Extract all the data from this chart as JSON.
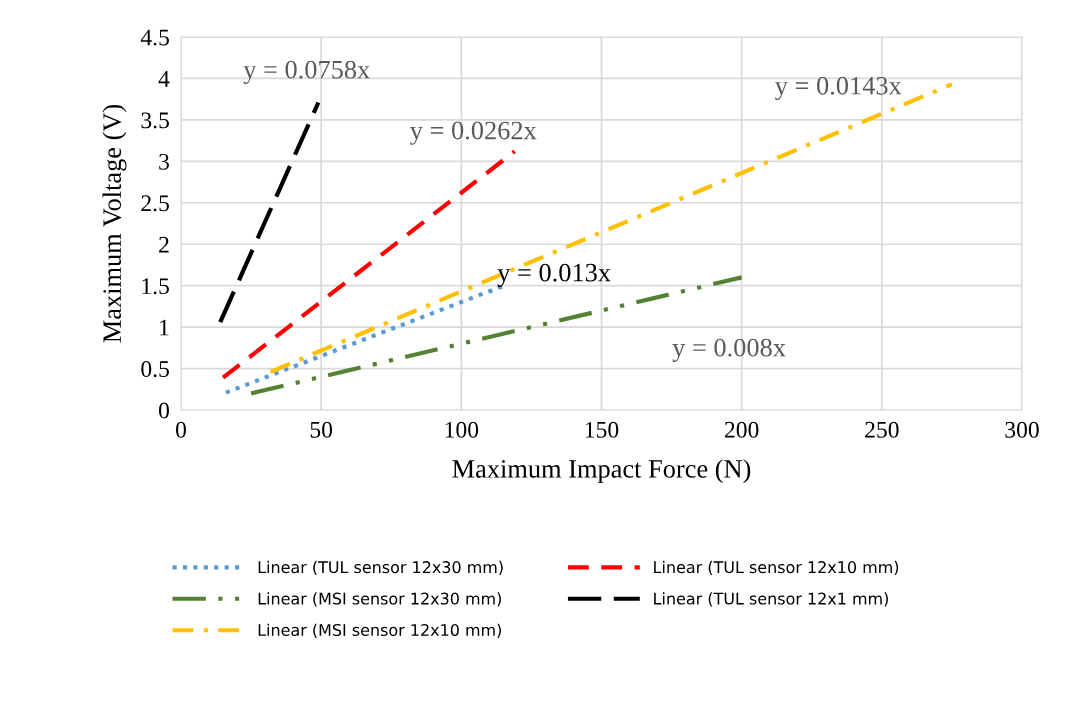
{
  "chart_data": {
    "type": "line",
    "xlabel": "Maximum Impact Force (N)",
    "ylabel": "Maximum Voltage (V)",
    "xlim": [
      0,
      300
    ],
    "xticks": [
      0,
      50,
      100,
      150,
      200,
      250,
      300
    ],
    "ylim": [
      0,
      4.5
    ],
    "yticks": [
      0,
      0.5,
      1,
      1.5,
      2,
      2.5,
      3,
      3.5,
      4,
      4.5
    ],
    "grid": true,
    "legend": "bottom",
    "marker": "none",
    "series": [
      {
        "name": "Linear (TUL sensor 12x30 mm)",
        "color": "#5b9bd5",
        "line_style": "dotted",
        "x": [
          16,
          116
        ],
        "values": [
          0.21,
          1.51
        ]
      },
      {
        "name": "Linear (MSI sensor 12x30 mm)",
        "color": "#548235",
        "line_style": "dashdotdot",
        "x": [
          25,
          200
        ],
        "values": [
          0.2,
          1.6
        ]
      },
      {
        "name": "Linear (MSI sensor 12x10 mm)",
        "color": "#ffc000",
        "line_style": "dashdot",
        "x": [
          32,
          275
        ],
        "values": [
          0.46,
          3.93
        ]
      },
      {
        "name": "Linear (TUL sensor 12x10 mm)",
        "color": "#ff0000",
        "line_style": "dashed",
        "x": [
          15,
          119
        ],
        "values": [
          0.39,
          3.12
        ]
      },
      {
        "name": "Linear (TUL sensor 12x1 mm)",
        "color": "#000000",
        "line_style": "longdash",
        "x": [
          14,
          49
        ],
        "values": [
          1.06,
          3.71
        ]
      }
    ],
    "annotations": [
      "y = 0.0758x",
      "y = 0.0262x",
      "y = 0.0143x",
      "y = 0.013x",
      "y = 0.008x"
    ]
  }
}
